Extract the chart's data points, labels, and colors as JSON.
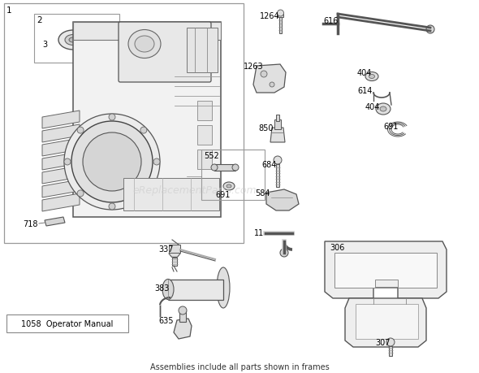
{
  "bg_color": "#ffffff",
  "line_color": "#888888",
  "dark_line": "#444444",
  "text_color": "#000000",
  "watermark_color": "#cccccc",
  "watermark_text": "eReplacementParts.com",
  "footer_text": "Assemblies include all parts shown in frames",
  "manual_label": "1058  Operator Manual"
}
